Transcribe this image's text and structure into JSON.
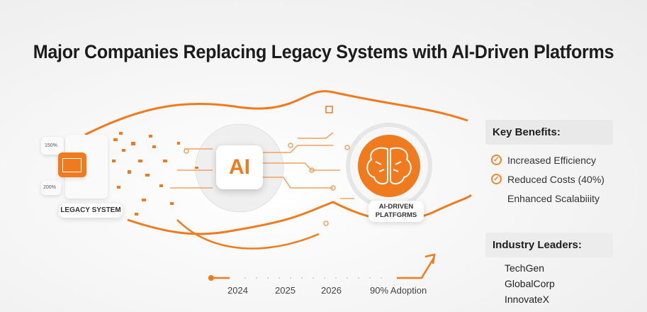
{
  "title": "Major Companies Replacing Legacy Systems with AI-Driven Platforms",
  "diagram": {
    "legacy_label": "LEGACY SYSTEM",
    "legacy_card_values": [
      "150%",
      "200%"
    ],
    "ai_label": "AI",
    "platform_label_line1": "AI-DRIVEN",
    "platform_label_line2": "PLATFGRMS",
    "accent_color": "#f07a1e"
  },
  "benefits": {
    "heading": "Key Benefits:",
    "items": [
      {
        "label": "Increased Efficiency",
        "checked": true
      },
      {
        "label": "Reduced Costs (40%)",
        "checked": true
      },
      {
        "label": "Enhanced Scalabiiity",
        "checked": false
      }
    ]
  },
  "leaders": {
    "heading": "Industry Leaders:",
    "items": [
      "TechGen",
      "GlobalCorp",
      "InnovateX"
    ]
  },
  "timeline": {
    "labels": [
      "2024",
      "2025",
      "2026",
      "90% Adoption"
    ]
  }
}
